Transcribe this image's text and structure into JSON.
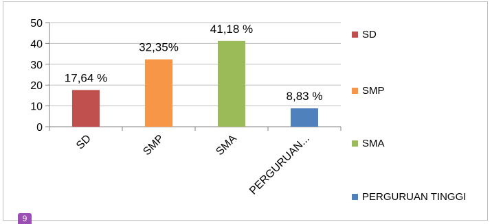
{
  "chart_data": {
    "type": "bar",
    "categories": [
      "SD",
      "SMP",
      "SMA",
      "PERGURUAN TINGGI"
    ],
    "category_tick_labels": [
      "SD",
      "SMP",
      "SMA",
      "PERGURUAN..."
    ],
    "values": [
      17.64,
      32.35,
      41.18,
      8.83
    ],
    "data_labels": [
      "17,64 %",
      "32,35%",
      "41,18 %",
      "8,83 %"
    ],
    "colors": [
      "#c0504d",
      "#f79646",
      "#9bbb59",
      "#4f81bd"
    ],
    "ylim": [
      0,
      50
    ],
    "yticks": [
      0,
      10,
      20,
      30,
      40,
      50
    ],
    "title": "",
    "xlabel": "",
    "ylabel": "",
    "grid": true,
    "legend": "right"
  },
  "page_badge": "9"
}
